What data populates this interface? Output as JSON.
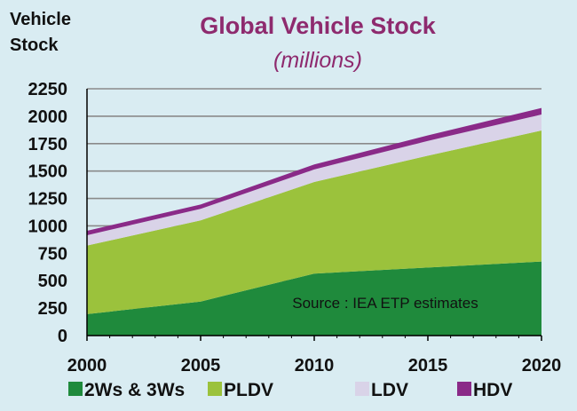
{
  "chart_data": {
    "type": "area",
    "stacked": true,
    "title": "Global Vehicle Stock",
    "subtitle": "(millions)",
    "ylabel_lines": [
      "Vehicle",
      "Stock"
    ],
    "xlabel": "",
    "x": [
      2000,
      2005,
      2010,
      2015,
      2020
    ],
    "xticks": [
      "2000",
      "2005",
      "2010",
      "2015",
      "2020"
    ],
    "xlim": [
      2000,
      2020
    ],
    "ylim": [
      0,
      2250
    ],
    "yticks": [
      "0",
      "250",
      "500",
      "750",
      "1000",
      "1250",
      "1500",
      "1750",
      "2000",
      "2250"
    ],
    "grid": true,
    "series": [
      {
        "name": "2Ws & 3Ws",
        "color": "#1f8a3c",
        "values": [
          195,
          310,
          565,
          620,
          675
        ]
      },
      {
        "name": "PLDV",
        "color": "#9bc23c",
        "values": [
          625,
          740,
          835,
          1020,
          1195
        ]
      },
      {
        "name": "LDV",
        "color": "#d9d3e8",
        "values": [
          95,
          105,
          115,
          135,
          145
        ]
      },
      {
        "name": "HDV",
        "color": "#8a2a88",
        "values": [
          40,
          40,
          45,
          50,
          60
        ]
      }
    ],
    "annotation": "Source : IEA ETP  estimates",
    "legend_position": "bottom"
  }
}
